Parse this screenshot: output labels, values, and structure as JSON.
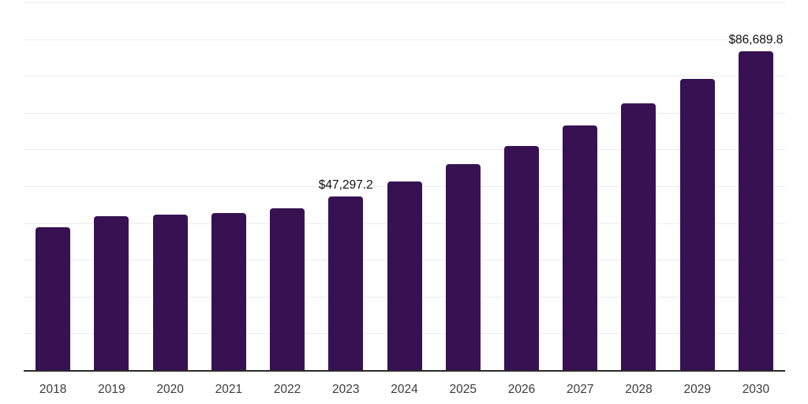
{
  "chart": {
    "background_color": "#ffffff",
    "bar_color": "#371152",
    "gridline_color": "#ececec",
    "axis_line_color": "#2a2a2a",
    "tick_label_color": "#3c3c3c",
    "data_label_color": "#111111"
  },
  "chart_data": {
    "type": "bar",
    "title": "",
    "xlabel": "",
    "ylabel": "",
    "categories": [
      "2018",
      "2019",
      "2020",
      "2021",
      "2022",
      "2023",
      "2024",
      "2025",
      "2026",
      "2027",
      "2028",
      "2029",
      "2030"
    ],
    "values": [
      38800,
      41900,
      42200,
      42800,
      44100,
      47297.2,
      51200,
      56000,
      60900,
      66500,
      72600,
      79200,
      86689.8
    ],
    "visible_data_labels": {
      "2023": "$47,297.2",
      "2030": "$86,689.8"
    },
    "ylim": [
      0,
      100000
    ],
    "grid": true,
    "gridline_count": 10,
    "legend_position": "none",
    "y_axis_labels_visible": false
  }
}
